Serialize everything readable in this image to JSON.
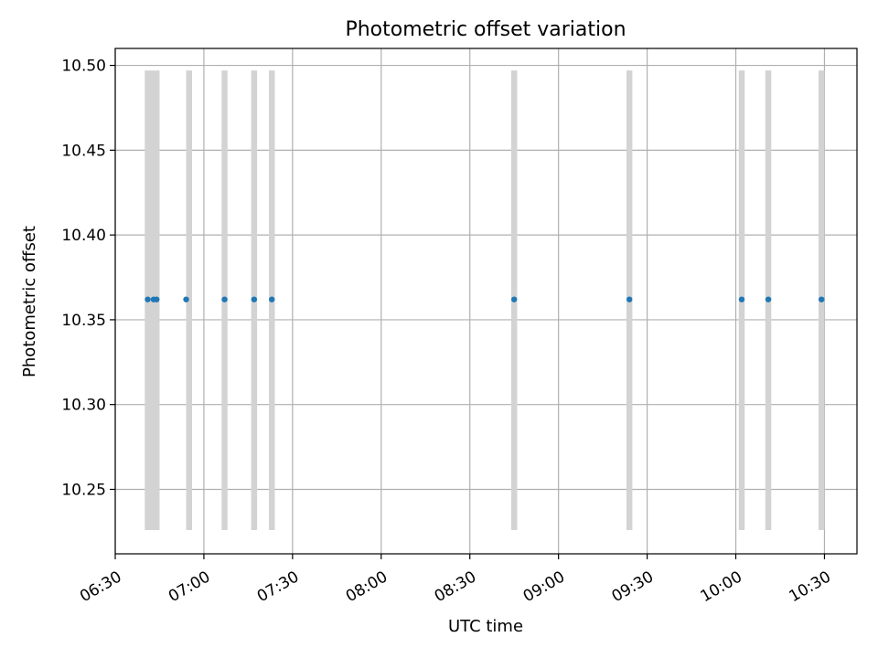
{
  "chart_data": {
    "type": "scatter",
    "title": "Photometric offset variation",
    "xlabel": "UTC time",
    "ylabel": "Photometric offset",
    "x_axis_type": "time",
    "xlim": [
      "06:30",
      "10:41"
    ],
    "ylim": [
      10.212,
      10.51
    ],
    "x_ticks": [
      "06:30",
      "07:00",
      "07:30",
      "08:00",
      "08:30",
      "09:00",
      "09:30",
      "10:00",
      "10:30"
    ],
    "y_ticks": [
      "10.25",
      "10.30",
      "10.35",
      "10.40",
      "10.45",
      "10.50"
    ],
    "grid": true,
    "legend": "none",
    "points": {
      "color": "#1f77b4",
      "x": [
        "06:41",
        "06:43",
        "06:44",
        "06:54",
        "07:07",
        "07:17",
        "07:23",
        "08:45",
        "09:24",
        "10:02",
        "10:11",
        "10:29"
      ],
      "y": [
        10.362,
        10.362,
        10.362,
        10.362,
        10.362,
        10.362,
        10.362,
        10.362,
        10.362,
        10.362,
        10.362,
        10.362
      ]
    },
    "bands": {
      "color": "#d3d3d3",
      "y_range": [
        10.226,
        10.497
      ],
      "intervals": [
        [
          "06:40",
          "06:45"
        ],
        [
          "06:54",
          "06:56"
        ],
        [
          "07:06",
          "07:08"
        ],
        [
          "07:16",
          "07:18"
        ],
        [
          "07:22",
          "07:24"
        ],
        [
          "08:44",
          "08:46"
        ],
        [
          "09:23",
          "09:25"
        ],
        [
          "10:01",
          "10:03"
        ],
        [
          "10:10",
          "10:12"
        ],
        [
          "10:28",
          "10:30"
        ]
      ]
    }
  }
}
